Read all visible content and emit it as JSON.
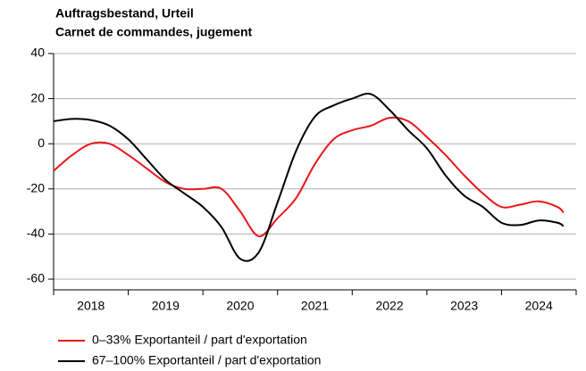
{
  "chart_data": {
    "type": "line",
    "title": "Auftragsbestand, Urteil",
    "subtitle": "Carnet de commandes, jugement",
    "categories": [
      "2018",
      "2019",
      "2020",
      "2021",
      "2022",
      "2023",
      "2024"
    ],
    "x": [
      2018.0,
      2018.25,
      2018.5,
      2018.75,
      2019.0,
      2019.25,
      2019.5,
      2019.75,
      2020.0,
      2020.25,
      2020.5,
      2020.75,
      2021.0,
      2021.25,
      2021.5,
      2021.75,
      2022.0,
      2022.25,
      2022.5,
      2022.75,
      2023.0,
      2023.25,
      2023.5,
      2023.75,
      2024.0,
      2024.25,
      2024.5,
      2024.75,
      2024.83
    ],
    "series": [
      {
        "name": "0–33% Exportanteil / part d'exportation",
        "color": "#e8161b",
        "values": [
          -12,
          -5,
          0,
          0,
          -5,
          -11,
          -17,
          -20,
          -20,
          -20,
          -30,
          -41,
          -33,
          -24,
          -9,
          2,
          6,
          8,
          11.5,
          10,
          3,
          -5,
          -14,
          -22,
          -28,
          -27,
          -25.5,
          -28,
          -30.5
        ]
      },
      {
        "name": "67–100% Exportanteil / part d'exportation",
        "color": "#000000",
        "values": [
          10,
          11,
          10.5,
          8,
          2,
          -7,
          -16,
          -22,
          -28,
          -37,
          -51,
          -48,
          -26,
          -3,
          12,
          17,
          20,
          22,
          15,
          6,
          -2,
          -14,
          -23,
          -28,
          -35,
          -36,
          -34,
          -35,
          -36.5
        ]
      }
    ],
    "xlim": [
      2018.0,
      2025.0
    ],
    "xticks": [
      2018,
      2019,
      2020,
      2021,
      2022,
      2023,
      2024,
      2025
    ],
    "ylim": [
      -60,
      40
    ],
    "yticks": [
      -60,
      -40,
      -20,
      0,
      20,
      40
    ],
    "grid": true
  }
}
